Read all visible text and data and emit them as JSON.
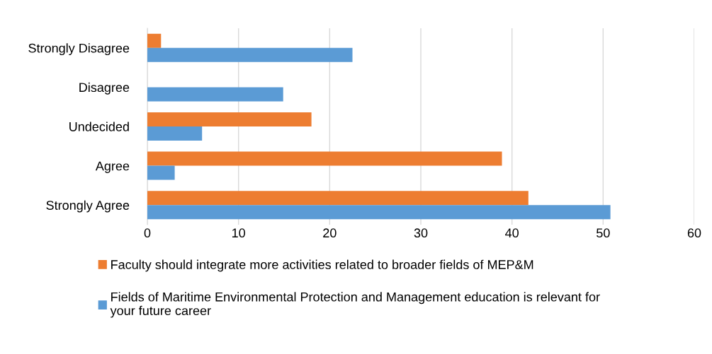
{
  "chart_data": {
    "type": "bar",
    "orientation": "horizontal",
    "categories": [
      "Strongly Disagree",
      "Disagree",
      "Undecided",
      "Agree",
      "Strongly Agree"
    ],
    "series": [
      {
        "name": "Faculty should integrate more activities related to broader fields of MEP&M",
        "color": "#ed7d31",
        "values": [
          1.5,
          0,
          18,
          38.9,
          41.8
        ]
      },
      {
        "name": "Fields of Maritime Environmental Protection and Management education is relevant for your future career",
        "color": "#5b9bd5",
        "values": [
          22.5,
          14.9,
          6,
          3,
          50.8
        ]
      }
    ],
    "xlim": [
      0,
      60
    ],
    "xticks": [
      0,
      10,
      20,
      30,
      40,
      50,
      60
    ],
    "grid": "x",
    "legend": "bottom"
  }
}
